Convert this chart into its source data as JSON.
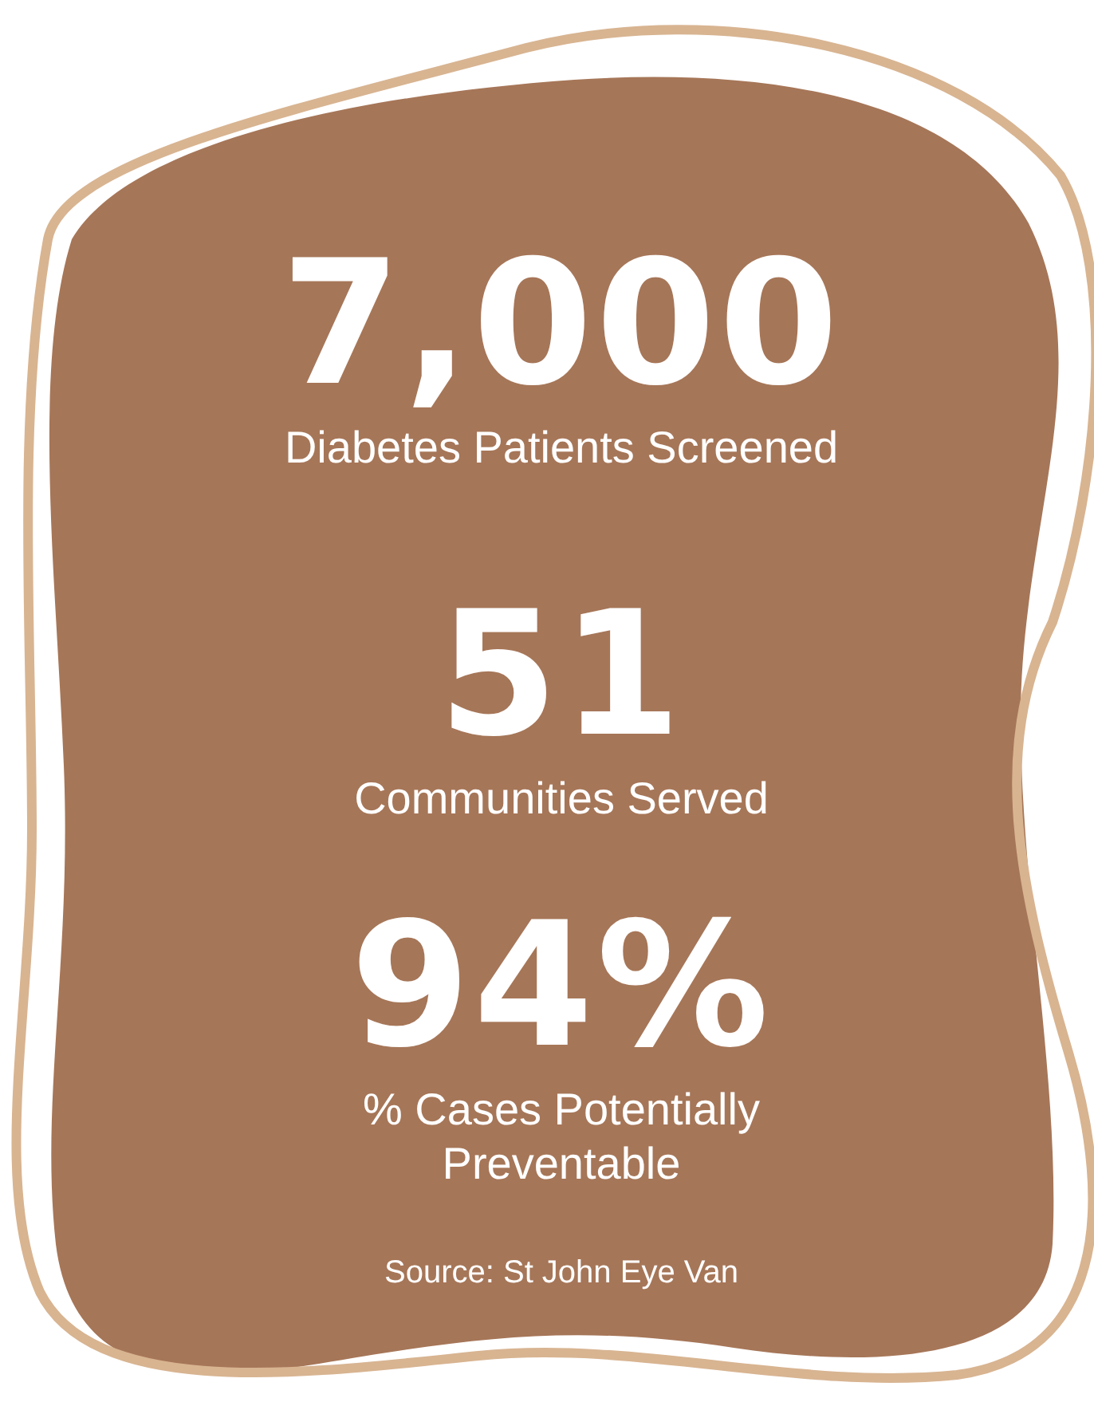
{
  "chart_data": {
    "type": "other",
    "categories": [
      "Diabetes Patients Screened",
      "Communities Served",
      "% Cases Potentially Preventable"
    ],
    "values": [
      7000,
      51,
      94
    ],
    "value_labels": [
      "7,000",
      "51",
      "94%"
    ],
    "annotations": [
      "Source: St John Eye Van"
    ]
  }
}
